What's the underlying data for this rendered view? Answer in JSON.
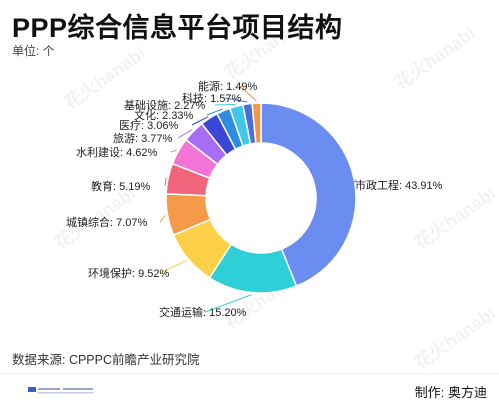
{
  "title": "PPP综合信息平台项目结构",
  "unit_label": "单位: 个",
  "source": "数据来源: CPPPC前瞻产业研究院",
  "maker": "制作: 奥方迪",
  "watermark_text": "花火hanabi",
  "chart_data": {
    "type": "pie",
    "donut": true,
    "value_suffix": "%",
    "categories": [
      "市政工程",
      "交通运输",
      "环境保护",
      "城镇综合",
      "教育",
      "水利建设",
      "旅游",
      "医疗",
      "文化",
      "基础设施",
      "科技",
      "能源"
    ],
    "values": [
      43.91,
      15.2,
      9.52,
      7.07,
      5.19,
      4.62,
      3.77,
      3.06,
      2.33,
      2.27,
      1.57,
      1.49
    ],
    "labels": [
      "市政工程: 43.91%",
      "交通运输: 15.20%",
      "环境保护: 9.52%",
      "城镇综合: 7.07%",
      "教育: 5.19%",
      "水利建设: 4.62%",
      "旅游: 3.77%",
      "医疗: 3.06%",
      "文化: 2.33%",
      "基础设施: 2.27%",
      "科技: 1.57%",
      "能源: 1.49%"
    ],
    "colors": [
      "#6b8cf0",
      "#2ecfd6",
      "#fdd04a",
      "#f49a48",
      "#f0657c",
      "#f274d4",
      "#a86cf5",
      "#3a47d6",
      "#2d8de0",
      "#41c8e6",
      "#4b6fd8",
      "#f59646"
    ]
  }
}
